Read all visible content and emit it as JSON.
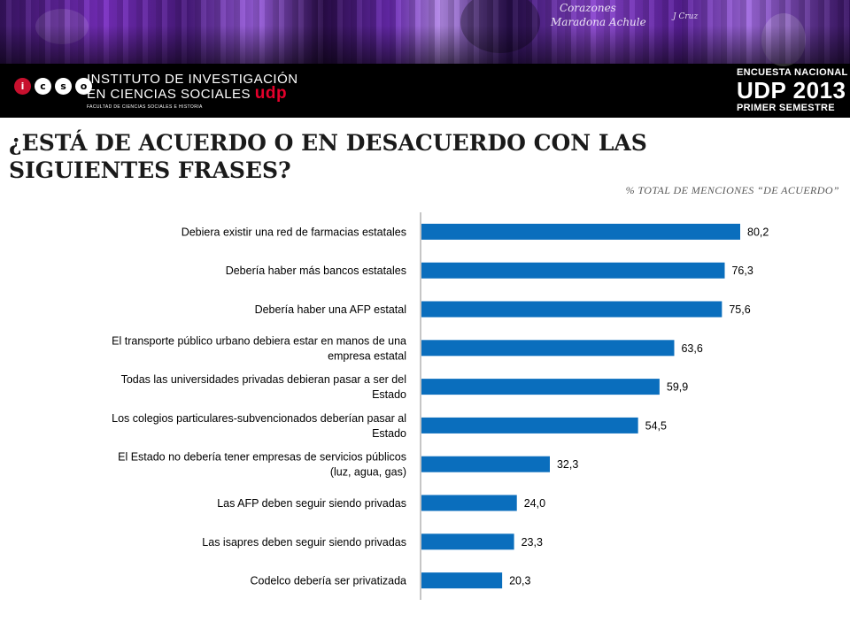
{
  "header": {
    "logo_letters": [
      "i",
      "c",
      "s",
      "o"
    ],
    "institute_line1": "INSTITUTO DE INVESTIGACIÓN",
    "institute_line2": "EN CIENCIAS SOCIALES",
    "institute_brand": "udp",
    "institute_line3": "FACULTAD DE CIENCIAS SOCIALES E HISTORIA",
    "survey_line1": "ENCUESTA NACIONAL",
    "survey_line2": "UDP 2013",
    "survey_line3": "PRIMER SEMESTRE",
    "photo_text_1": "Corazones",
    "photo_text_2": "Maradona Achule",
    "photo_text_3": "J Cruz",
    "brand_color": "#7b2fc4",
    "accent_color": "#e4002b"
  },
  "slide": {
    "title": "¿ESTÁ DE ACUERDO O EN DESACUERDO CON LAS SIGUIENTES FRASES?",
    "subtitle": "% TOTAL DE MENCIONES “DE ACUERDO”"
  },
  "chart_data": {
    "type": "bar",
    "orientation": "horizontal",
    "categories": [
      [
        "Debiera existir una red de farmacias estatales"
      ],
      [
        "Debería haber más bancos estatales"
      ],
      [
        "Debería haber una AFP estatal"
      ],
      [
        "El transporte público urbano debiera estar en manos de una",
        "empresa estatal"
      ],
      [
        "Todas las universidades privadas debieran pasar a ser del",
        "Estado"
      ],
      [
        "Los colegios particulares-subvencionados deberían pasar al",
        "Estado"
      ],
      [
        "El Estado no debería tener empresas de servicios públicos",
        "(luz, agua, gas)"
      ],
      [
        "Las AFP deben seguir siendo privadas"
      ],
      [
        "Las isapres deben seguir siendo privadas"
      ],
      [
        "Codelco debería ser privatizada"
      ]
    ],
    "values": [
      80.2,
      76.3,
      75.6,
      63.6,
      59.9,
      54.5,
      32.3,
      24.0,
      23.3,
      20.3
    ],
    "value_labels": [
      "80,2",
      "76,3",
      "75,6",
      "63,6",
      "59,9",
      "54,5",
      "32,3",
      "24,0",
      "23,3",
      "20,3"
    ],
    "xlim": [
      0,
      100
    ],
    "bar_color": "#0a6ebd",
    "grid": false,
    "legend": "none"
  }
}
